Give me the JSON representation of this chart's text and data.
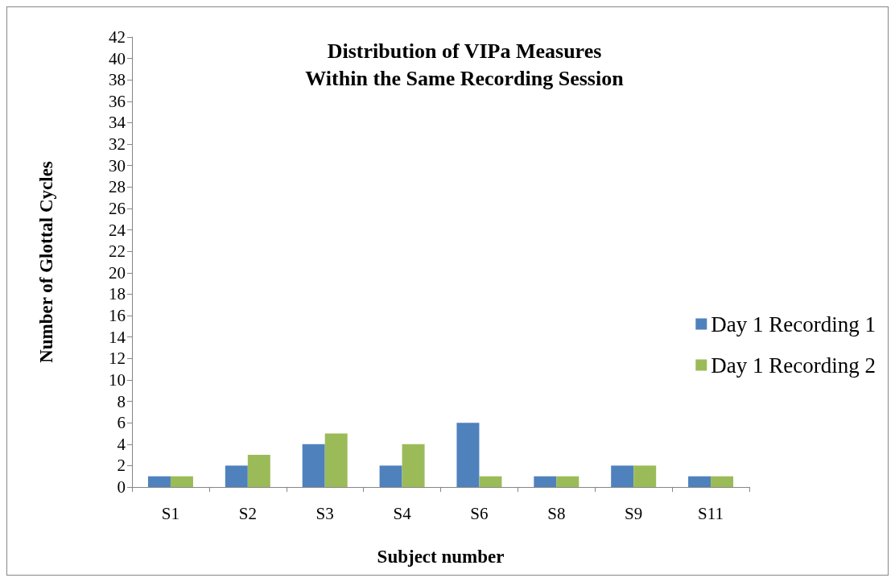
{
  "chart_data": {
    "type": "bar",
    "title": "Distribution of VIPa Measures\nWithin the Same Recording Session",
    "xlabel": "Subject number",
    "ylabel": "Number of Glottal Cycles",
    "categories": [
      "S1",
      "S2",
      "S3",
      "S4",
      "S6",
      "S8",
      "S9",
      "S11"
    ],
    "series": [
      {
        "name": "Day 1 Recording 1",
        "color": "#4f81bd",
        "values": [
          1,
          2,
          4,
          2,
          6,
          1,
          2,
          1
        ]
      },
      {
        "name": "Day 1 Recording 2",
        "color": "#9bbb59",
        "values": [
          1,
          3,
          5,
          4,
          1,
          1,
          2,
          1
        ]
      }
    ],
    "ylim": [
      0,
      42
    ],
    "yticks": [
      0,
      2,
      4,
      6,
      8,
      10,
      12,
      14,
      16,
      18,
      20,
      22,
      24,
      26,
      28,
      30,
      32,
      34,
      36,
      38,
      40,
      42
    ],
    "legend": "right"
  }
}
